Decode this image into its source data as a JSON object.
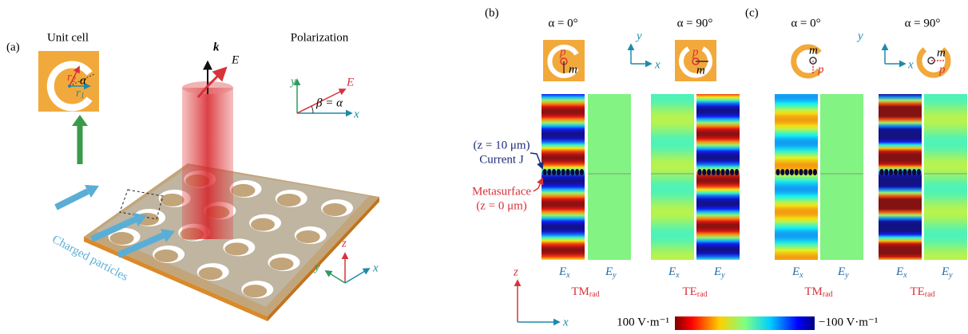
{
  "panel_a": {
    "label": "(a)",
    "unit_cell": {
      "title": "Unit cell",
      "r2": {
        "base": "r",
        "sub": "2"
      },
      "r1": {
        "base": "r",
        "sub": "1"
      },
      "alpha": "α"
    },
    "polarization": {
      "title": "Polarization",
      "y": "y",
      "x": "x",
      "E": "E",
      "angle": "β = α"
    },
    "beam": {
      "k": "k",
      "E": "E"
    },
    "particles": "Charged particles",
    "axes": {
      "z": "z",
      "y": "y",
      "x": "x"
    }
  },
  "panel_b": {
    "label": "(b)",
    "columns": [
      {
        "title": "α = 0°",
        "p": "p",
        "m": "m",
        "mode": {
          "base": "TM",
          "sub": "rad"
        },
        "fields": [
          {
            "base": "E",
            "sub": "x"
          },
          {
            "base": "E",
            "sub": "y"
          }
        ]
      },
      {
        "title": "α = 90°",
        "p": "p",
        "m": "m",
        "mode": {
          "base": "TE",
          "sub": "rad"
        },
        "fields": [
          {
            "base": "E",
            "sub": "x"
          },
          {
            "base": "E",
            "sub": "y"
          }
        ]
      }
    ],
    "axes": {
      "y": "y",
      "x": "x"
    }
  },
  "panel_c": {
    "label": "(c)",
    "columns": [
      {
        "title": "α = 0°",
        "p": "p",
        "m": "m",
        "mode": {
          "base": "TM",
          "sub": "rad"
        },
        "fields": [
          {
            "base": "E",
            "sub": "x"
          },
          {
            "base": "E",
            "sub": "y"
          }
        ]
      },
      {
        "title": "α = 90°",
        "p": "p",
        "m": "m",
        "mode": {
          "base": "TE",
          "sub": "rad"
        },
        "fields": [
          {
            "base": "E",
            "sub": "x"
          },
          {
            "base": "E",
            "sub": "y"
          }
        ]
      }
    ],
    "axes": {
      "y": "y",
      "x": "x"
    }
  },
  "annotations": {
    "current_z": "(z = 10 μm)",
    "current": "Current J",
    "metasurface": "Metasurface",
    "metasurface_z": "(z = 0 μm)"
  },
  "axes": {
    "z": "z",
    "x": "x"
  },
  "colorbar": {
    "max": "100 V·m⁻¹",
    "min": "−100 V·m⁻¹"
  }
}
